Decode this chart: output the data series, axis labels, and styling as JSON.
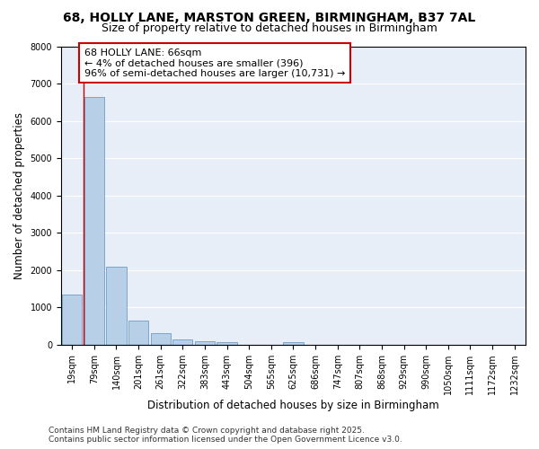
{
  "title_line1": "68, HOLLY LANE, MARSTON GREEN, BIRMINGHAM, B37 7AL",
  "title_line2": "Size of property relative to detached houses in Birmingham",
  "xlabel": "Distribution of detached houses by size in Birmingham",
  "ylabel": "Number of detached properties",
  "categories": [
    "19sqm",
    "79sqm",
    "140sqm",
    "201sqm",
    "261sqm",
    "322sqm",
    "383sqm",
    "443sqm",
    "504sqm",
    "565sqm",
    "625sqm",
    "686sqm",
    "747sqm",
    "807sqm",
    "868sqm",
    "929sqm",
    "990sqm",
    "1050sqm",
    "1111sqm",
    "1172sqm",
    "1232sqm"
  ],
  "values": [
    1330,
    6650,
    2080,
    650,
    310,
    130,
    90,
    55,
    0,
    0,
    55,
    0,
    0,
    0,
    0,
    0,
    0,
    0,
    0,
    0,
    0
  ],
  "bar_color": "#b8cfe8",
  "bar_edge_color": "#5a8fc0",
  "highlight_color": "#cc0000",
  "annotation_text": "68 HOLLY LANE: 66sqm\n← 4% of detached houses are smaller (396)\n96% of semi-detached houses are larger (10,731) →",
  "annotation_box_color": "white",
  "annotation_box_edge": "#cc0000",
  "ylim": [
    0,
    8000
  ],
  "yticks": [
    0,
    1000,
    2000,
    3000,
    4000,
    5000,
    6000,
    7000,
    8000
  ],
  "background_color": "#e8eef8",
  "grid_color": "white",
  "footer_line1": "Contains HM Land Registry data © Crown copyright and database right 2025.",
  "footer_line2": "Contains public sector information licensed under the Open Government Licence v3.0.",
  "title_fontsize": 10,
  "subtitle_fontsize": 9,
  "axis_label_fontsize": 8.5,
  "tick_fontsize": 7,
  "annotation_fontsize": 8,
  "footer_fontsize": 6.5
}
